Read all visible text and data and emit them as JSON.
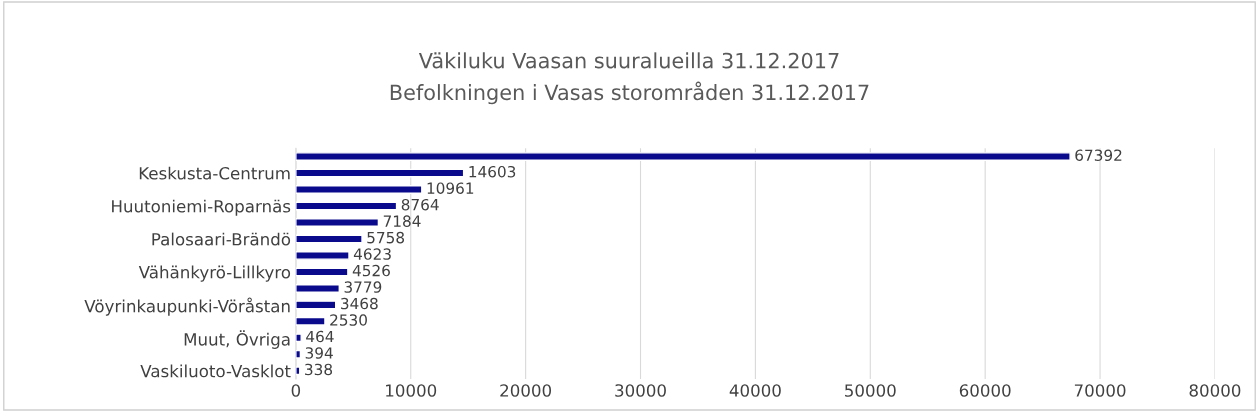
{
  "chart_data": {
    "type": "bar",
    "orientation": "horizontal",
    "title": "Väkiluku Vaasan suuralueilla 31.12.2017\nBefolkningen i Vasas storområden 31.12.2017",
    "categories": [
      null,
      "Keskusta-Centrum",
      null,
      "Huutoniemi-Roparnäs",
      null,
      "Palosaari-Brändö",
      null,
      "Vähänkyrö-Lillkyro",
      null,
      "Vöyrinkaupunki-Vöråstan",
      null,
      "Muut, Övriga",
      null,
      "Vaskiluoto-Vasklot"
    ],
    "values": [
      67392,
      14603,
      10961,
      8764,
      7184,
      5758,
      4623,
      4526,
      3779,
      3468,
      2530,
      464,
      394,
      338
    ],
    "color": "#0a0a8c",
    "xlim": [
      0,
      80000
    ],
    "xticks": [
      0,
      10000,
      20000,
      30000,
      40000,
      50000,
      60000,
      70000,
      80000
    ],
    "grid": "x",
    "data_labels": true
  }
}
